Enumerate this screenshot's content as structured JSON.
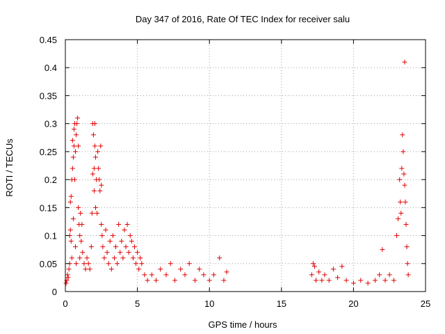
{
  "chart_data": {
    "type": "scatter",
    "title": "Day 347 of 2016, Rate Of TEC Index for receiver salu",
    "xlabel": "GPS time / hours",
    "ylabel": "ROTI / TECUs",
    "xlim": [
      0,
      25
    ],
    "ylim": [
      0,
      0.45
    ],
    "xticks": [
      0,
      5,
      10,
      15,
      20,
      25
    ],
    "yticks": [
      0,
      0.05,
      0.1,
      0.15,
      0.2,
      0.25,
      0.3,
      0.35,
      0.4,
      0.45
    ],
    "xtick_labels": [
      "0",
      "5",
      "10",
      "15",
      "20",
      "25"
    ],
    "ytick_labels": [
      "0",
      "0.05",
      "0.1",
      "0.15",
      "0.2",
      "0.25",
      "0.3",
      "0.35",
      "0.4",
      "0.45"
    ],
    "grid": true,
    "marker": "+",
    "color": "#e00000",
    "points": [
      [
        0.05,
        0.015
      ],
      [
        0.1,
        0.02
      ],
      [
        0.15,
        0.03
      ],
      [
        0.2,
        0.025
      ],
      [
        0.25,
        0.04
      ],
      [
        0.3,
        0.05
      ],
      [
        0.3,
        0.1
      ],
      [
        0.35,
        0.11
      ],
      [
        0.35,
        0.16
      ],
      [
        0.4,
        0.17
      ],
      [
        0.4,
        0.09
      ],
      [
        0.45,
        0.2
      ],
      [
        0.45,
        0.06
      ],
      [
        0.5,
        0.22
      ],
      [
        0.5,
        0.27
      ],
      [
        0.55,
        0.24
      ],
      [
        0.55,
        0.13
      ],
      [
        0.6,
        0.26
      ],
      [
        0.6,
        0.29
      ],
      [
        0.65,
        0.3
      ],
      [
        0.65,
        0.2
      ],
      [
        0.7,
        0.25
      ],
      [
        0.7,
        0.08
      ],
      [
        0.75,
        0.28
      ],
      [
        0.75,
        0.05
      ],
      [
        0.8,
        0.3
      ],
      [
        0.85,
        0.31
      ],
      [
        0.9,
        0.26
      ],
      [
        0.9,
        0.15
      ],
      [
        0.95,
        0.12
      ],
      [
        1.0,
        0.1
      ],
      [
        1.0,
        0.06
      ],
      [
        1.05,
        0.14
      ],
      [
        1.1,
        0.09
      ],
      [
        1.15,
        0.12
      ],
      [
        1.2,
        0.07
      ],
      [
        1.3,
        0.05
      ],
      [
        1.4,
        0.04
      ],
      [
        1.5,
        0.06
      ],
      [
        1.6,
        0.05
      ],
      [
        1.7,
        0.04
      ],
      [
        1.8,
        0.08
      ],
      [
        1.85,
        0.14
      ],
      [
        1.9,
        0.21
      ],
      [
        1.9,
        0.3
      ],
      [
        1.95,
        0.28
      ],
      [
        2.0,
        0.22
      ],
      [
        2.0,
        0.18
      ],
      [
        2.05,
        0.3
      ],
      [
        2.05,
        0.26
      ],
      [
        2.1,
        0.24
      ],
      [
        2.1,
        0.15
      ],
      [
        2.15,
        0.2
      ],
      [
        2.2,
        0.14
      ],
      [
        2.25,
        0.25
      ],
      [
        2.3,
        0.22
      ],
      [
        2.35,
        0.2
      ],
      [
        2.4,
        0.18
      ],
      [
        2.45,
        0.26
      ],
      [
        2.5,
        0.19
      ],
      [
        2.5,
        0.12
      ],
      [
        2.55,
        0.1
      ],
      [
        2.6,
        0.08
      ],
      [
        2.7,
        0.06
      ],
      [
        2.8,
        0.11
      ],
      [
        2.9,
        0.07
      ],
      [
        3.0,
        0.05
      ],
      [
        3.1,
        0.09
      ],
      [
        3.2,
        0.04
      ],
      [
        3.3,
        0.1
      ],
      [
        3.4,
        0.06
      ],
      [
        3.5,
        0.08
      ],
      [
        3.6,
        0.05
      ],
      [
        3.7,
        0.12
      ],
      [
        3.8,
        0.07
      ],
      [
        3.9,
        0.09
      ],
      [
        4.0,
        0.06
      ],
      [
        4.1,
        0.11
      ],
      [
        4.2,
        0.08
      ],
      [
        4.3,
        0.12
      ],
      [
        4.4,
        0.07
      ],
      [
        4.5,
        0.1
      ],
      [
        4.6,
        0.09
      ],
      [
        4.7,
        0.06
      ],
      [
        4.8,
        0.08
      ],
      [
        4.9,
        0.05
      ],
      [
        5.0,
        0.07
      ],
      [
        5.1,
        0.04
      ],
      [
        5.2,
        0.06
      ],
      [
        5.3,
        0.05
      ],
      [
        5.5,
        0.03
      ],
      [
        5.7,
        0.02
      ],
      [
        6.0,
        0.03
      ],
      [
        6.3,
        0.02
      ],
      [
        6.6,
        0.04
      ],
      [
        7.0,
        0.03
      ],
      [
        7.3,
        0.05
      ],
      [
        7.6,
        0.02
      ],
      [
        8.0,
        0.04
      ],
      [
        8.3,
        0.03
      ],
      [
        8.6,
        0.05
      ],
      [
        9.0,
        0.02
      ],
      [
        9.3,
        0.04
      ],
      [
        9.6,
        0.03
      ],
      [
        10.0,
        0.02
      ],
      [
        10.3,
        0.03
      ],
      [
        10.7,
        0.06
      ],
      [
        11.0,
        0.02
      ],
      [
        11.2,
        0.035
      ],
      [
        17.1,
        0.03
      ],
      [
        17.2,
        0.05
      ],
      [
        17.3,
        0.045
      ],
      [
        17.4,
        0.02
      ],
      [
        17.6,
        0.035
      ],
      [
        17.8,
        0.02
      ],
      [
        18.0,
        0.03
      ],
      [
        18.3,
        0.02
      ],
      [
        18.6,
        0.04
      ],
      [
        18.9,
        0.025
      ],
      [
        19.2,
        0.045
      ],
      [
        19.5,
        0.02
      ],
      [
        20.0,
        0.015
      ],
      [
        20.5,
        0.02
      ],
      [
        21.0,
        0.015
      ],
      [
        21.5,
        0.02
      ],
      [
        21.8,
        0.03
      ],
      [
        22.0,
        0.075
      ],
      [
        22.2,
        0.02
      ],
      [
        22.5,
        0.03
      ],
      [
        22.8,
        0.02
      ],
      [
        23.0,
        0.1
      ],
      [
        23.1,
        0.13
      ],
      [
        23.2,
        0.2
      ],
      [
        23.25,
        0.16
      ],
      [
        23.3,
        0.14
      ],
      [
        23.35,
        0.22
      ],
      [
        23.4,
        0.28
      ],
      [
        23.45,
        0.25
      ],
      [
        23.5,
        0.21
      ],
      [
        23.55,
        0.19
      ],
      [
        23.6,
        0.16
      ],
      [
        23.65,
        0.12
      ],
      [
        23.7,
        0.08
      ],
      [
        23.75,
        0.05
      ],
      [
        23.8,
        0.03
      ],
      [
        23.55,
        0.41
      ]
    ]
  }
}
